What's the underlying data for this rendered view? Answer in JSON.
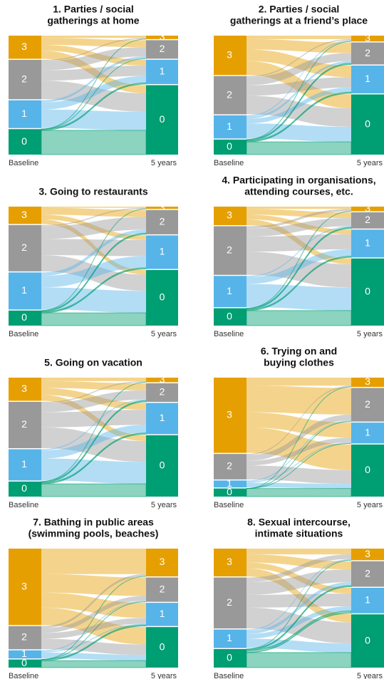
{
  "chart_data": [
    {
      "type": "alluvial",
      "title": [
        "1. Parties / social",
        "gatherings at home"
      ],
      "levels": [
        "3",
        "2",
        "1",
        "0"
      ],
      "stages": [
        "Baseline",
        "5 years"
      ],
      "colors": [
        "#E69F00",
        "#999999",
        "#56B4E9",
        "#009E73"
      ],
      "flows": [
        [
          2,
          6,
          5,
          7
        ],
        [
          1,
          8,
          9,
          16
        ],
        [
          0,
          2,
          6,
          16
        ],
        [
          0,
          0,
          1,
          21
        ]
      ]
    },
    {
      "type": "alluvial",
      "title": [
        "2. Parties / social",
        "gatherings at a friend’s place"
      ],
      "levels": [
        "3",
        "2",
        "1",
        "0"
      ],
      "stages": [
        "Baseline",
        "5 years"
      ],
      "colors": [
        "#E69F00",
        "#999999",
        "#56B4E9",
        "#009E73"
      ],
      "flows": [
        [
          3,
          9,
          10,
          12
        ],
        [
          1,
          7,
          9,
          16
        ],
        [
          1,
          2,
          4,
          13
        ],
        [
          0,
          1,
          1,
          11
        ]
      ]
    },
    {
      "type": "alluvial",
      "title": [
        "3. Going to restaurants"
      ],
      "levels": [
        "3",
        "2",
        "1",
        "0"
      ],
      "stages": [
        "Baseline",
        "5 years"
      ],
      "colors": [
        "#E69F00",
        "#999999",
        "#56B4E9",
        "#009E73"
      ],
      "flows": [
        [
          1,
          6,
          4,
          4
        ],
        [
          1,
          11,
          14,
          14
        ],
        [
          0,
          3,
          10,
          19
        ],
        [
          0,
          1,
          1,
          11
        ]
      ]
    },
    {
      "type": "alluvial",
      "title": [
        "4. Participating in organisations,",
        "attending courses, etc."
      ],
      "levels": [
        "3",
        "2",
        "1",
        "0"
      ],
      "stages": [
        "Baseline",
        "5 years"
      ],
      "colors": [
        "#E69F00",
        "#999999",
        "#56B4E9",
        "#009E73"
      ],
      "flows": [
        [
          2,
          5,
          4,
          5
        ],
        [
          2,
          7,
          13,
          20
        ],
        [
          0,
          1,
          6,
          20
        ],
        [
          0,
          1,
          1,
          13
        ]
      ]
    },
    {
      "type": "alluvial",
      "title": [
        "5. Going on vacation"
      ],
      "levels": [
        "3",
        "2",
        "1",
        "0"
      ],
      "stages": [
        "Baseline",
        "5 years"
      ],
      "colors": [
        "#E69F00",
        "#999999",
        "#56B4E9",
        "#009E73"
      ],
      "flows": [
        [
          3,
          6,
          6,
          5
        ],
        [
          1,
          8,
          13,
          18
        ],
        [
          0,
          1,
          7,
          19
        ],
        [
          0,
          1,
          1,
          11
        ]
      ]
    },
    {
      "type": "alluvial",
      "title": [
        "6. Trying on and",
        "buying clothes"
      ],
      "levels": [
        "3",
        "2",
        "1",
        "0"
      ],
      "stages": [
        "Baseline",
        "5 years"
      ],
      "colors": [
        "#E69F00",
        "#999999",
        "#56B4E9",
        "#009E73"
      ],
      "flows": [
        [
          7,
          23,
          13,
          22
        ],
        [
          1,
          5,
          4,
          12
        ],
        [
          0,
          1,
          1,
          4
        ],
        [
          0,
          0,
          0,
          7
        ]
      ]
    },
    {
      "type": "alluvial",
      "title": [
        "7. Bathing in public areas",
        "(swimming pools, beaches)"
      ],
      "levels": [
        "3",
        "2",
        "1",
        "0"
      ],
      "stages": [
        "Baseline",
        "5 years"
      ],
      "colors": [
        "#E69F00",
        "#999999",
        "#56B4E9",
        "#009E73"
      ],
      "flows": [
        [
          22,
          16,
          13,
          15
        ],
        [
          2,
          4,
          5,
          9
        ],
        [
          0,
          1,
          1,
          5
        ],
        [
          0,
          0,
          1,
          6
        ]
      ]
    },
    {
      "type": "alluvial",
      "title": [
        "8. Sexual intercourse,",
        "intimate situations"
      ],
      "levels": [
        "3",
        "2",
        "1",
        "0"
      ],
      "stages": [
        "Baseline",
        "5 years"
      ],
      "colors": [
        "#E69F00",
        "#999999",
        "#56B4E9",
        "#009E73"
      ],
      "flows": [
        [
          5,
          7,
          5,
          7
        ],
        [
          4,
          11,
          11,
          18
        ],
        [
          1,
          3,
          4,
          8
        ],
        [
          0,
          1,
          2,
          13
        ]
      ]
    }
  ]
}
